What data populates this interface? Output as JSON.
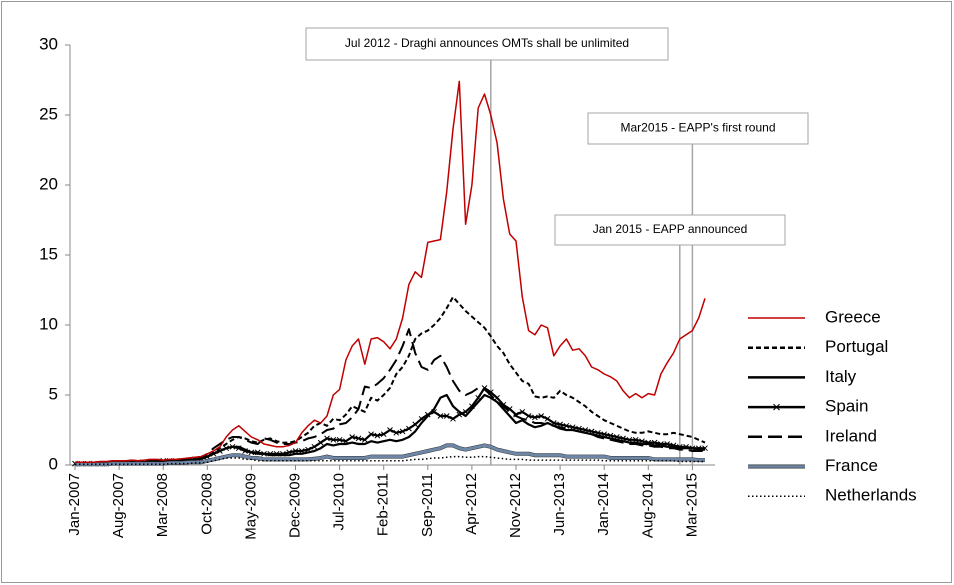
{
  "chart_data": {
    "type": "line",
    "categories": [
      "Jan-2007",
      null,
      null,
      null,
      null,
      null,
      null,
      "Aug-2007",
      null,
      null,
      null,
      null,
      null,
      null,
      "Mar-2008",
      null,
      null,
      null,
      null,
      null,
      null,
      "Oct-2008",
      null,
      null,
      null,
      null,
      null,
      null,
      "May-2009",
      null,
      null,
      null,
      null,
      null,
      null,
      "Dec-2009",
      null,
      null,
      null,
      null,
      null,
      null,
      "Jul-2010",
      null,
      null,
      null,
      null,
      null,
      null,
      "Feb-2011",
      null,
      null,
      null,
      null,
      null,
      null,
      "Sep-2011",
      null,
      null,
      null,
      null,
      null,
      null,
      "Apr-2012",
      null,
      null,
      null,
      null,
      null,
      null,
      "Nov-2012",
      null,
      null,
      null,
      null,
      null,
      null,
      "Jun-2013",
      null,
      null,
      null,
      null,
      null,
      null,
      "Jan-2014",
      null,
      null,
      null,
      null,
      null,
      null,
      "Aug-2014",
      null,
      null,
      null,
      null,
      null,
      null,
      "Mar-2015",
      null,
      null
    ],
    "ylim": [
      0,
      30
    ],
    "yticks": [
      0,
      5,
      10,
      15,
      20,
      25,
      30
    ],
    "grid": false,
    "legend": "right",
    "annotations": [
      "Jul 2012 - Draghi announces OMTs shall be unlimited",
      "Mar2015 - EAPP's first round",
      "Jan 2015 - EAPP announced"
    ],
    "series": [
      {
        "name": "Greece",
        "color": "#c00000",
        "line_style": "solid",
        "values": [
          0.2,
          0.2,
          0.2,
          0.2,
          0.25,
          0.25,
          0.3,
          0.3,
          0.3,
          0.35,
          0.3,
          0.35,
          0.4,
          0.4,
          0.35,
          0.4,
          0.4,
          0.45,
          0.5,
          0.55,
          0.6,
          0.8,
          1.0,
          1.3,
          2.0,
          2.5,
          2.8,
          2.4,
          2.0,
          1.8,
          1.5,
          1.4,
          1.3,
          1.3,
          1.4,
          1.6,
          2.3,
          2.8,
          3.2,
          3.0,
          3.5,
          5.0,
          5.4,
          7.5,
          8.5,
          9.0,
          7.2,
          9.0,
          9.1,
          8.8,
          8.3,
          9.0,
          10.5,
          12.9,
          13.8,
          13.4,
          15.9,
          16.0,
          16.1,
          19.5,
          24.0,
          27.4,
          17.2,
          20.0,
          25.5,
          26.5,
          25.0,
          23.0,
          19.0,
          16.5,
          16.0,
          12.0,
          9.6,
          9.3,
          10.0,
          9.8,
          7.8,
          8.5,
          9.0,
          8.2,
          8.3,
          7.8,
          7.0,
          6.8,
          6.5,
          6.3,
          6.0,
          5.3,
          4.8,
          5.1,
          4.8,
          5.1,
          5.0,
          6.5,
          7.3,
          8.0,
          9.0,
          9.3,
          9.6,
          10.5,
          11.9
        ]
      },
      {
        "name": "Portugal",
        "color": "#000000",
        "line_style": "dashed",
        "values": [
          0.15,
          0.15,
          0.15,
          0.15,
          0.15,
          0.15,
          0.2,
          0.2,
          0.2,
          0.2,
          0.25,
          0.25,
          0.3,
          0.3,
          0.3,
          0.3,
          0.35,
          0.35,
          0.4,
          0.4,
          0.45,
          0.6,
          0.9,
          1.2,
          1.5,
          1.8,
          2.0,
          1.9,
          1.7,
          1.6,
          1.8,
          1.9,
          1.7,
          1.6,
          1.6,
          1.7,
          2.0,
          2.3,
          2.8,
          3.0,
          2.8,
          3.3,
          3.2,
          3.6,
          4.2,
          4.0,
          3.8,
          4.8,
          4.6,
          5.0,
          5.5,
          6.5,
          7.0,
          7.8,
          9.0,
          9.4,
          9.6,
          10.0,
          10.5,
          11.2,
          12.0,
          11.5,
          11.0,
          10.6,
          10.2,
          9.8,
          9.2,
          8.5,
          8.0,
          7.2,
          6.6,
          6.0,
          5.8,
          4.9,
          4.8,
          4.9,
          4.8,
          5.3,
          5.0,
          4.8,
          4.5,
          4.2,
          3.8,
          3.5,
          3.2,
          3.0,
          2.8,
          2.6,
          2.4,
          2.3,
          2.3,
          2.4,
          2.3,
          2.2,
          2.2,
          2.3,
          2.2,
          2.1,
          2.0,
          1.8,
          1.6
        ]
      },
      {
        "name": "Italy",
        "color": "#000000",
        "line_style": "solid",
        "values": [
          0.1,
          0.1,
          0.1,
          0.1,
          0.1,
          0.15,
          0.15,
          0.15,
          0.2,
          0.2,
          0.2,
          0.2,
          0.25,
          0.3,
          0.3,
          0.3,
          0.3,
          0.3,
          0.35,
          0.4,
          0.45,
          0.6,
          0.8,
          1.0,
          1.2,
          1.3,
          1.3,
          1.1,
          0.9,
          0.8,
          0.8,
          0.7,
          0.7,
          0.7,
          0.7,
          0.8,
          0.8,
          0.9,
          1.0,
          1.2,
          1.5,
          1.4,
          1.5,
          1.5,
          1.6,
          1.5,
          1.5,
          1.7,
          1.6,
          1.7,
          1.8,
          1.7,
          1.8,
          2.0,
          2.4,
          3.0,
          3.5,
          4.0,
          4.8,
          5.0,
          4.2,
          3.8,
          3.5,
          4.0,
          4.5,
          5.0,
          4.8,
          4.5,
          4.0,
          3.5,
          3.0,
          3.2,
          2.9,
          2.7,
          2.8,
          3.0,
          2.8,
          2.6,
          2.5,
          2.5,
          2.4,
          2.3,
          2.2,
          2.1,
          2.0,
          1.9,
          1.8,
          1.7,
          1.6,
          1.6,
          1.5,
          1.5,
          1.4,
          1.4,
          1.3,
          1.3,
          1.2,
          1.2,
          1.2,
          1.1,
          1.1
        ]
      },
      {
        "name": "Spain",
        "color": "#000000",
        "line_style": "solid",
        "marker": "x",
        "values": [
          0.1,
          0.1,
          0.1,
          0.1,
          0.1,
          0.1,
          0.15,
          0.15,
          0.15,
          0.2,
          0.2,
          0.2,
          0.25,
          0.25,
          0.3,
          0.3,
          0.3,
          0.3,
          0.35,
          0.4,
          0.45,
          0.6,
          0.8,
          1.0,
          1.2,
          1.3,
          1.2,
          1.0,
          0.9,
          0.9,
          0.8,
          0.8,
          0.8,
          0.8,
          0.9,
          1.0,
          1.0,
          1.1,
          1.3,
          1.6,
          1.9,
          1.8,
          1.8,
          1.7,
          2.0,
          1.9,
          1.8,
          2.2,
          2.1,
          2.2,
          2.5,
          2.3,
          2.4,
          2.6,
          2.9,
          3.3,
          3.6,
          3.8,
          3.5,
          3.5,
          3.3,
          3.6,
          3.8,
          4.2,
          4.8,
          5.5,
          5.2,
          4.8,
          4.3,
          4.0,
          3.6,
          3.8,
          3.5,
          3.4,
          3.5,
          3.3,
          3.0,
          2.9,
          2.8,
          2.7,
          2.6,
          2.5,
          2.4,
          2.3,
          2.2,
          2.1,
          2.0,
          1.9,
          1.8,
          1.8,
          1.7,
          1.6,
          1.6,
          1.5,
          1.5,
          1.4,
          1.3,
          1.3,
          1.2,
          1.2,
          1.2
        ]
      },
      {
        "name": "Ireland",
        "color": "#000000",
        "line_style": "long-dashed",
        "values": [
          0.1,
          0.1,
          0.1,
          0.1,
          0.1,
          0.15,
          0.15,
          0.15,
          0.2,
          0.2,
          0.2,
          0.2,
          0.25,
          0.3,
          0.3,
          0.3,
          0.3,
          0.35,
          0.4,
          0.4,
          0.5,
          0.8,
          1.2,
          1.5,
          1.8,
          2.0,
          2.0,
          1.8,
          1.6,
          1.5,
          1.9,
          1.8,
          1.6,
          1.5,
          1.5,
          1.6,
          1.7,
          1.9,
          2.0,
          2.2,
          2.5,
          2.6,
          2.9,
          3.0,
          3.4,
          4.0,
          5.6,
          5.5,
          5.8,
          6.2,
          6.8,
          7.5,
          8.5,
          9.7,
          8.0,
          7.0,
          6.8,
          7.5,
          7.8,
          7.0,
          6.0,
          5.3,
          5.0,
          5.2,
          5.5,
          5.4,
          5.0,
          4.5,
          4.2,
          3.8,
          3.5,
          3.3,
          3.2,
          3.0,
          3.0,
          2.9,
          2.8,
          2.7,
          2.6,
          2.5,
          2.4,
          2.3,
          2.2,
          2.0,
          1.9,
          1.8,
          1.7,
          1.6,
          1.5,
          1.5,
          1.4,
          1.4,
          1.3,
          1.3,
          1.2,
          1.2,
          1.1,
          1.1,
          1.0,
          1.0,
          1.0
        ]
      },
      {
        "name": "France",
        "color": "#6e87a6",
        "line_style": "solid",
        "values": [
          0.05,
          0.05,
          0.05,
          0.05,
          0.05,
          0.05,
          0.1,
          0.1,
          0.1,
          0.1,
          0.1,
          0.1,
          0.1,
          0.1,
          0.1,
          0.15,
          0.15,
          0.15,
          0.2,
          0.2,
          0.2,
          0.3,
          0.4,
          0.5,
          0.6,
          0.7,
          0.7,
          0.6,
          0.5,
          0.5,
          0.4,
          0.4,
          0.4,
          0.4,
          0.4,
          0.4,
          0.4,
          0.4,
          0.45,
          0.5,
          0.6,
          0.5,
          0.5,
          0.5,
          0.5,
          0.5,
          0.5,
          0.6,
          0.6,
          0.6,
          0.6,
          0.6,
          0.6,
          0.7,
          0.8,
          0.9,
          1.0,
          1.1,
          1.2,
          1.4,
          1.4,
          1.2,
          1.1,
          1.2,
          1.3,
          1.4,
          1.3,
          1.1,
          1.0,
          0.9,
          0.8,
          0.8,
          0.8,
          0.7,
          0.7,
          0.7,
          0.7,
          0.7,
          0.6,
          0.6,
          0.6,
          0.6,
          0.6,
          0.6,
          0.6,
          0.5,
          0.5,
          0.5,
          0.5,
          0.5,
          0.5,
          0.5,
          0.4,
          0.4,
          0.4,
          0.4,
          0.4,
          0.4,
          0.4,
          0.35,
          0.35
        ]
      },
      {
        "name": "Netherlands",
        "color": "#000000",
        "line_style": "dotted",
        "values": [
          0.05,
          0.05,
          0.05,
          0.05,
          0.05,
          0.05,
          0.05,
          0.05,
          0.05,
          0.05,
          0.05,
          0.05,
          0.05,
          0.05,
          0.05,
          0.1,
          0.1,
          0.1,
          0.1,
          0.15,
          0.15,
          0.2,
          0.3,
          0.4,
          0.5,
          0.5,
          0.5,
          0.4,
          0.4,
          0.3,
          0.3,
          0.3,
          0.3,
          0.3,
          0.3,
          0.3,
          0.3,
          0.3,
          0.3,
          0.3,
          0.3,
          0.3,
          0.3,
          0.3,
          0.3,
          0.3,
          0.3,
          0.3,
          0.3,
          0.3,
          0.3,
          0.3,
          0.3,
          0.35,
          0.4,
          0.4,
          0.45,
          0.5,
          0.5,
          0.55,
          0.6,
          0.6,
          0.55,
          0.55,
          0.6,
          0.6,
          0.55,
          0.5,
          0.45,
          0.4,
          0.4,
          0.4,
          0.35,
          0.35,
          0.35,
          0.35,
          0.35,
          0.35,
          0.35,
          0.35,
          0.35,
          0.35,
          0.35,
          0.35,
          0.3,
          0.3,
          0.3,
          0.3,
          0.3,
          0.3,
          0.3,
          0.3,
          0.3,
          0.3,
          0.3,
          0.3,
          0.25,
          0.25,
          0.25,
          0.25,
          0.25
        ]
      }
    ]
  }
}
